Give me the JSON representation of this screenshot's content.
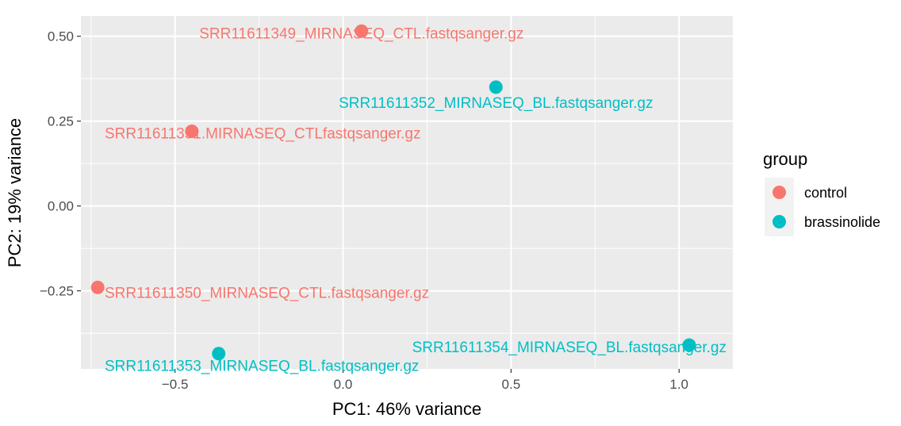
{
  "chart_data": {
    "type": "scatter",
    "xlabel": "PC1: 46% variance",
    "ylabel": "PC2: 19% variance",
    "xlim": [
      -0.78,
      1.16
    ],
    "ylim": [
      -0.48,
      0.56
    ],
    "x_ticks": [
      -0.5,
      0.0,
      0.5,
      1.0
    ],
    "x_tick_labels": [
      "−0.5",
      "0.0",
      "0.5",
      "1.0"
    ],
    "y_ticks": [
      0.5,
      0.25,
      0.0,
      -0.25
    ],
    "y_tick_labels": [
      "0.50",
      "0.25",
      "0.00",
      "−0.25"
    ],
    "grid": true,
    "legend": {
      "title": "group",
      "placement": "right",
      "entries": [
        {
          "name": "control",
          "color": "#F8766D"
        },
        {
          "name": "brassinolide",
          "color": "#00BFC4"
        }
      ]
    },
    "points": [
      {
        "label": "SRR11611349_MIRNASEQ_CTL.fastqsanger.gz",
        "x": 0.055,
        "y": 0.515,
        "group": "control"
      },
      {
        "label": "SRR11611352_MIRNASEQ_BL.fastqsanger.gz",
        "x": 0.455,
        "y": 0.35,
        "group": "brassinolide"
      },
      {
        "label": "SRR11611351.MIRNASEQ_CTLfastqsanger.gz",
        "x": -0.45,
        "y": 0.22,
        "group": "control"
      },
      {
        "label": "SRR11611350_MIRNASEQ_CTL.fastqsanger.gz",
        "x": -0.73,
        "y": -0.24,
        "group": "control"
      },
      {
        "label": "SRR11611353_MIRNASEQ_BL.fastqsanger.gz",
        "x": -0.37,
        "y": -0.435,
        "group": "brassinolide"
      },
      {
        "label": "SRR11611354_MIRNASEQ_BL.fastqsanger.gz",
        "x": 1.03,
        "y": -0.41,
        "group": "brassinolide"
      }
    ]
  }
}
